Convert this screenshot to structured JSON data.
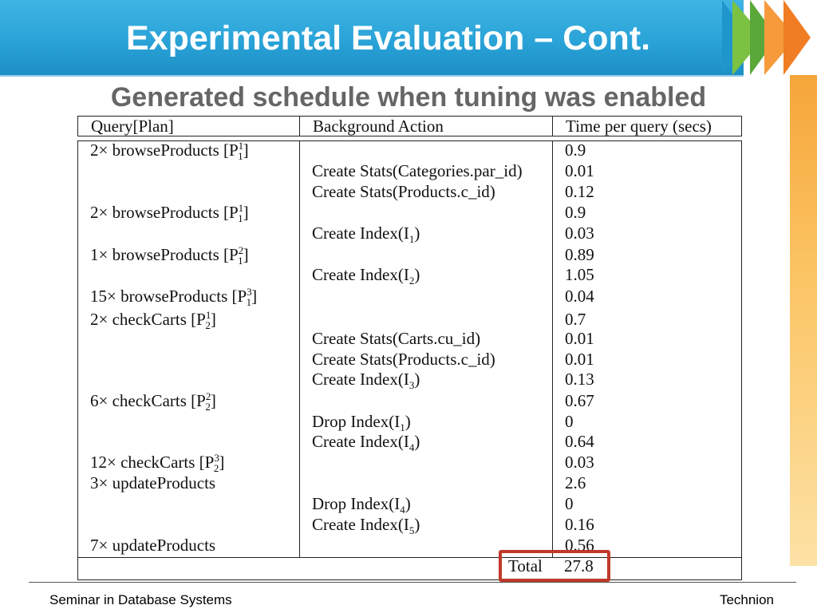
{
  "slide": {
    "title": "Experimental Evaluation – Cont.",
    "subtitle": "Generated schedule when tuning was enabled"
  },
  "table": {
    "headers": [
      "Query[Plan]",
      "Background Action",
      "Time per query (secs)"
    ],
    "rows": [
      {
        "query": "2× browseProducts [P",
        "plan_sub": "1",
        "plan_sup": "1",
        "action": "",
        "action_sub": "",
        "time": "0.9"
      },
      {
        "query": "",
        "plan_sub": "",
        "plan_sup": "",
        "action": "Create Stats(Categories.par_id)",
        "action_sub": "",
        "time": "0.01"
      },
      {
        "query": "",
        "plan_sub": "",
        "plan_sup": "",
        "action": "Create Stats(Products.c_id)",
        "action_sub": "",
        "time": "0.12"
      },
      {
        "query": "2× browseProducts [P",
        "plan_sub": "1",
        "plan_sup": "1",
        "action": "",
        "action_sub": "",
        "time": "0.9"
      },
      {
        "query": "",
        "plan_sub": "",
        "plan_sup": "",
        "action": "Create Index(I",
        "action_sub": "1",
        "time": "0.03"
      },
      {
        "query": "1× browseProducts [P",
        "plan_sub": "1",
        "plan_sup": "2",
        "action": "",
        "action_sub": "",
        "time": "0.89"
      },
      {
        "query": "",
        "plan_sub": "",
        "plan_sup": "",
        "action": "Create Index(I",
        "action_sub": "2",
        "time": "1.05"
      },
      {
        "query": "15× browseProducts [P",
        "plan_sub": "1",
        "plan_sup": "3",
        "action": "",
        "action_sub": "",
        "time": "0.04"
      },
      {
        "query": "2× checkCarts [P",
        "plan_sub": "2",
        "plan_sup": "1",
        "action": "",
        "action_sub": "",
        "time": "0.7"
      },
      {
        "query": "",
        "plan_sub": "",
        "plan_sup": "",
        "action": "Create Stats(Carts.cu_id)",
        "action_sub": "",
        "time": "0.01"
      },
      {
        "query": "",
        "plan_sub": "",
        "plan_sup": "",
        "action": "Create Stats(Products.c_id)",
        "action_sub": "",
        "time": "0.01"
      },
      {
        "query": "",
        "plan_sub": "",
        "plan_sup": "",
        "action": "Create Index(I",
        "action_sub": "3",
        "time": "0.13"
      },
      {
        "query": "6× checkCarts [P",
        "plan_sub": "2",
        "plan_sup": "2",
        "action": "",
        "action_sub": "",
        "time": "0.67"
      },
      {
        "query": "",
        "plan_sub": "",
        "plan_sup": "",
        "action": "Drop Index(I",
        "action_sub": "1",
        "time": "0"
      },
      {
        "query": "",
        "plan_sub": "",
        "plan_sup": "",
        "action": "Create Index(I",
        "action_sub": "4",
        "time": "0.64"
      },
      {
        "query": "12× checkCarts [P",
        "plan_sub": "2",
        "plan_sup": "3",
        "action": "",
        "action_sub": "",
        "time": "0.03"
      },
      {
        "query": "3× updateProducts",
        "plan_sub": "",
        "plan_sup": "",
        "action": "",
        "action_sub": "",
        "time": "2.6"
      },
      {
        "query": "",
        "plan_sub": "",
        "plan_sup": "",
        "action": "Drop Index(I",
        "action_sub": "4",
        "time": "0"
      },
      {
        "query": "",
        "plan_sub": "",
        "plan_sup": "",
        "action": "Create Index(I",
        "action_sub": "5",
        "time": "0.16"
      },
      {
        "query": "7× updateProducts",
        "plan_sub": "",
        "plan_sup": "",
        "action": "",
        "action_sub": "",
        "time": "0.56"
      }
    ],
    "total_label": "Total",
    "total_value": "27.8"
  },
  "footer": {
    "left": "Seminar in Database Systems",
    "right": "Technion"
  },
  "colors": {
    "banner": "#2aa3d8",
    "highlight": "#c0392b",
    "subtitle": "#666666"
  }
}
